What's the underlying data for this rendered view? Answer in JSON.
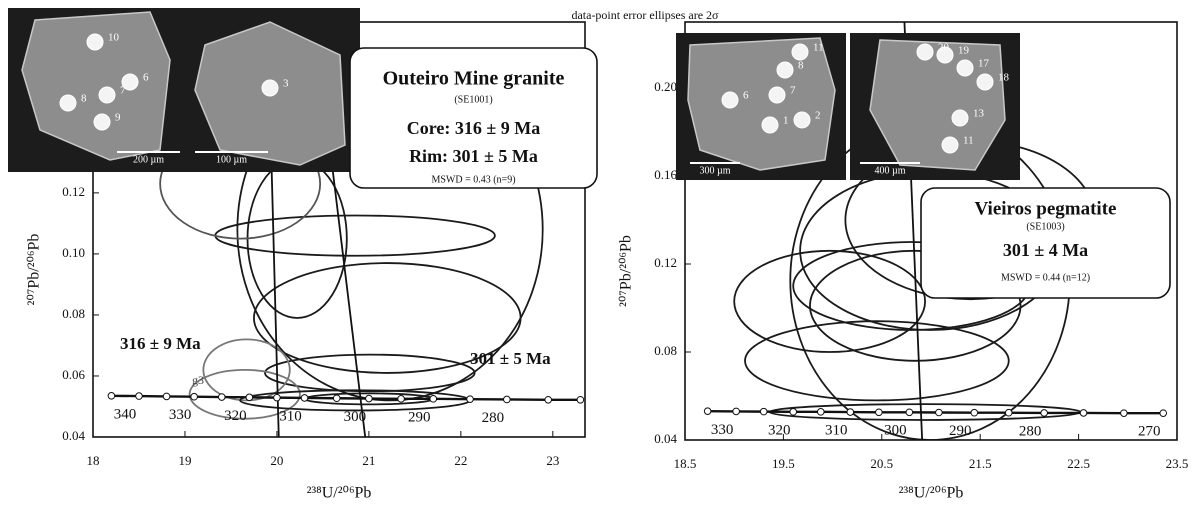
{
  "note": "data-point error ellipses are 2σ",
  "chart_data": [
    {
      "type": "concordia",
      "xlabel": "²³⁸U/²⁰⁶Pb",
      "ylabel": "²⁰⁷Pb/²⁰⁶Pb",
      "xlim": [
        18,
        23.35
      ],
      "ylim": [
        0.04,
        0.176
      ],
      "xticks": [
        18,
        19,
        20,
        21,
        22,
        23
      ],
      "yticks": [
        0.04,
        0.06,
        0.08,
        {
          "value": 0.1,
          "label": "0.10"
        },
        0.12
      ],
      "concordia": {
        "x": [
          18.2,
          18.5,
          18.8,
          19.1,
          19.4,
          19.7,
          20.0,
          20.3,
          20.65,
          21.0,
          21.35,
          21.7,
          22.1,
          22.5,
          22.95,
          23.3
        ],
        "y": [
          0.0535,
          0.0534,
          0.0533,
          0.0532,
          0.0531,
          0.053,
          0.0529,
          0.0528,
          0.0527,
          0.0526,
          0.0525,
          0.0525,
          0.0524,
          0.0523,
          0.0522,
          0.0522
        ],
        "labels": [
          null,
          340,
          null,
          330,
          null,
          320,
          null,
          310,
          null,
          300,
          null,
          290,
          null,
          280,
          null,
          null
        ]
      },
      "ellipses": [
        {
          "x": 21.23,
          "y": 0.108,
          "rx": 1.66,
          "ry": 0.056,
          "color": "#1a1a1a"
        },
        {
          "x": 20.85,
          "y": 0.106,
          "rx": 1.52,
          "ry": 0.0066,
          "color": "#1a1a1a"
        },
        {
          "x": 20.22,
          "y": 0.105,
          "rx": 0.54,
          "ry": 0.026,
          "color": "#1a1a1a"
        },
        {
          "x": 21.2,
          "y": 0.079,
          "rx": 1.45,
          "ry": 0.018,
          "color": "#1a1a1a"
        },
        {
          "x": 19.6,
          "y": 0.123,
          "rx": 0.87,
          "ry": 0.018,
          "color": "#555"
        },
        {
          "x": 21.01,
          "y": 0.061,
          "rx": 1.14,
          "ry": 0.006,
          "color": "#1a1a1a"
        },
        {
          "x": 19.65,
          "y": 0.054,
          "rx": 0.6,
          "ry": 0.008,
          "color": "#777"
        },
        {
          "x": 19.67,
          "y": 0.062,
          "rx": 0.47,
          "ry": 0.01,
          "color": "#777"
        },
        {
          "x": 20.85,
          "y": 0.052,
          "rx": 1.25,
          "ry": 0.0033,
          "color": "#1a1a1a"
        },
        {
          "x": 21.0,
          "y": 0.0525,
          "rx": 0.7,
          "ry": 0.0018,
          "color": "#1a1a1a"
        }
      ],
      "lines": [
        {
          "x": [
            19.9,
            20.02
          ],
          "y": [
            0.176,
            0.04
          ]
        },
        {
          "x": [
            20.41,
            20.96
          ],
          "y": [
            0.176,
            0.04
          ]
        }
      ],
      "annotations": [
        "316 ± 9 Ma",
        "301 ± 5 Ma",
        "g3"
      ],
      "box": [
        "Outeiro Mine granite",
        "(SE1001)",
        "Core: 316 ± 9 Ma",
        "Rim: 301 ± 5 Ma",
        "MSWD = 0.43 (n=9)"
      ],
      "insets": [
        {
          "spots": [
            10,
            7,
            6,
            8,
            9
          ],
          "scale_bar": "200 µm"
        },
        {
          "spots": [
            3
          ],
          "scale_bar": "100 µm"
        }
      ]
    },
    {
      "type": "concordia",
      "xlabel": "²³⁸U/²⁰⁶Pb",
      "ylabel": "²⁰⁷Pb/²⁰⁶Pb",
      "xlim": [
        18.5,
        23.5
      ],
      "ylim": [
        0.04,
        0.23
      ],
      "xticks": [
        18.5,
        19.5,
        20.5,
        21.5,
        22.5,
        23.5
      ],
      "yticks": [
        0.04,
        0.08,
        0.12,
        0.16,
        {
          "value": 0.2,
          "label": "0.20"
        }
      ],
      "concordia": {
        "x": [
          18.73,
          19.02,
          19.3,
          19.6,
          19.88,
          20.18,
          20.47,
          20.78,
          21.08,
          21.44,
          21.79,
          22.15,
          22.55,
          22.96,
          23.36
        ],
        "y": [
          0.0531,
          0.053,
          0.0529,
          0.0528,
          0.0528,
          0.0527,
          0.0526,
          0.0526,
          0.0525,
          0.0524,
          0.0524,
          0.0523,
          0.0523,
          0.0522,
          0.0522
        ],
        "labels": [
          null,
          330,
          null,
          320,
          null,
          310,
          null,
          300,
          null,
          290,
          null,
          280,
          null,
          null,
          270
        ]
      },
      "ellipses": [
        {
          "x": 20.99,
          "y": 0.1125,
          "rx": 1.42,
          "ry": 0.0725,
          "color": "#1a1a1a"
        },
        {
          "x": 21.4,
          "y": 0.14,
          "rx": 1.27,
          "ry": 0.036,
          "color": "#1a1a1a"
        },
        {
          "x": 19.97,
          "y": 0.103,
          "rx": 0.97,
          "ry": 0.023,
          "color": "#1a1a1a"
        },
        {
          "x": 20.8,
          "y": 0.11,
          "rx": 1.2,
          "ry": 0.02,
          "color": "#1a1a1a"
        },
        {
          "x": 20.84,
          "y": 0.101,
          "rx": 1.07,
          "ry": 0.025,
          "color": "#1a1a1a"
        },
        {
          "x": 20.45,
          "y": 0.076,
          "rx": 1.34,
          "ry": 0.018,
          "color": "#1a1a1a"
        },
        {
          "x": 20.99,
          "y": 0.126,
          "rx": 1.32,
          "ry": 0.036,
          "color": "#1a1a1a"
        },
        {
          "x": 20.94,
          "y": 0.0527,
          "rx": 1.58,
          "ry": 0.0036,
          "color": "#1a1a1a"
        }
      ],
      "lines": [
        {
          "x": [
            20.73,
            20.91
          ],
          "y": [
            0.23,
            0.04
          ]
        }
      ],
      "annotations": [],
      "box": [
        "Vieiros pegmatite",
        "(SE1003)",
        "301 ± 4 Ma",
        "MSWD = 0.44 (n=12)"
      ],
      "insets": [
        {
          "spots": [
            11,
            6,
            8,
            7,
            1,
            2
          ],
          "scale_bar": "300 µm"
        },
        {
          "spots": [
            19,
            20,
            17,
            18,
            13,
            11
          ],
          "scale_bar": "400 µm"
        }
      ]
    }
  ]
}
